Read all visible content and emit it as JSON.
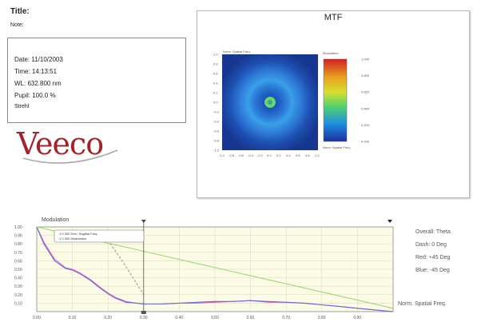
{
  "header": {
    "title_label": "Title:",
    "note_label": "Note:"
  },
  "info": {
    "date": "Date:  11/10/2003",
    "time": "Time:  14:13:51",
    "wl": "WL: 632.800 nm",
    "pupil": "Pupil: 100.0 %",
    "extra": "Strehl"
  },
  "logo": {
    "text": "Veeco",
    "color": "#a3232a"
  },
  "mtf_panel": {
    "title": "MTF",
    "heatmap_corner_label": "Norm. Spatial Freq.",
    "colorbar_title": "Modulation",
    "colorbar_bottom_label": "Norm. Spatial Freq.",
    "y_ticks": [
      "1.0",
      "0.8",
      "0.6",
      "0.4",
      "0.2",
      "0.0",
      "-0.2",
      "-0.4",
      "-0.6",
      "-0.8",
      "-1.0"
    ],
    "x_ticks": [
      "-1.0",
      "-0.8",
      "-0.6",
      "-0.4",
      "-0.2",
      "0.0",
      "0.2",
      "0.4",
      "0.6",
      "0.8",
      "1.0"
    ],
    "colorbar_ticks": [
      "1.000",
      "0.800",
      "0.600",
      "0.400",
      "0.200",
      "0.000"
    ],
    "colors": {
      "low": "#1a3a9c",
      "mid": "#3aa0e8",
      "peak": "#4ad070",
      "bar_top": "#d42020"
    }
  },
  "chart_data": {
    "type": "line",
    "title": "Modulation",
    "xlabel": "Norm. Spatial Freq.",
    "ylabel": "",
    "xlim": [
      0.0,
      1.0
    ],
    "ylim": [
      0.0,
      1.0
    ],
    "x_ticks": [
      "0.00",
      "0.10",
      "0.20",
      "0.30",
      "0.40",
      "0.50",
      "0.60",
      "0.70",
      "0.80",
      "0.90"
    ],
    "y_ticks": [
      "1.00",
      "0.90",
      "0.80",
      "0.70",
      "0.60",
      "0.50",
      "0.40",
      "0.30",
      "0.20",
      "0.10"
    ],
    "grid": true,
    "cursor_x": 0.3,
    "annotation_lines": [
      "1.0 300 Ecm. Sagittal Freq.",
      "1.0 300 Modulation"
    ],
    "series": [
      {
        "color": "#e060c0",
        "x": [
          0.0,
          0.02,
          0.05,
          0.08,
          0.1,
          0.12,
          0.15,
          0.18,
          0.2,
          0.22,
          0.25,
          0.28,
          0.3,
          0.35,
          0.4,
          0.45,
          0.5,
          0.55,
          0.6,
          0.65,
          0.7,
          0.75,
          0.8,
          0.85,
          0.9,
          0.95,
          1.0
        ],
        "values": [
          1.0,
          0.82,
          0.62,
          0.52,
          0.5,
          0.46,
          0.38,
          0.28,
          0.22,
          0.17,
          0.12,
          0.1,
          0.09,
          0.09,
          0.1,
          0.1,
          0.11,
          0.12,
          0.13,
          0.11,
          0.11,
          0.1,
          0.08,
          0.06,
          0.04,
          0.02,
          0.0
        ]
      },
      {
        "color": "#6a6adf",
        "x": [
          0.0,
          0.02,
          0.05,
          0.08,
          0.1,
          0.12,
          0.15,
          0.18,
          0.2,
          0.22,
          0.25,
          0.28,
          0.3,
          0.35,
          0.4,
          0.45,
          0.5,
          0.55,
          0.6,
          0.65,
          0.7,
          0.75,
          0.8,
          0.85,
          0.9,
          0.95,
          1.0
        ],
        "values": [
          1.0,
          0.8,
          0.6,
          0.51,
          0.49,
          0.45,
          0.37,
          0.27,
          0.21,
          0.16,
          0.11,
          0.1,
          0.09,
          0.09,
          0.1,
          0.11,
          0.12,
          0.12,
          0.13,
          0.12,
          0.11,
          0.1,
          0.08,
          0.06,
          0.04,
          0.02,
          0.0
        ]
      },
      {
        "color": "#9ad870",
        "x": [
          0.0,
          0.25,
          0.5,
          0.75,
          1.0
        ],
        "values": [
          1.0,
          0.76,
          0.52,
          0.28,
          0.04
        ]
      },
      {
        "color": "#a0a090",
        "dashed": true,
        "x": [
          0.18,
          0.24,
          0.3
        ],
        "values": [
          0.96,
          0.6,
          0.2
        ]
      }
    ]
  },
  "side_labels": [
    "Overall: Theta",
    "Dash: 0 Deg",
    "Red: +45 Deg",
    "Blue: -45 Deg"
  ]
}
